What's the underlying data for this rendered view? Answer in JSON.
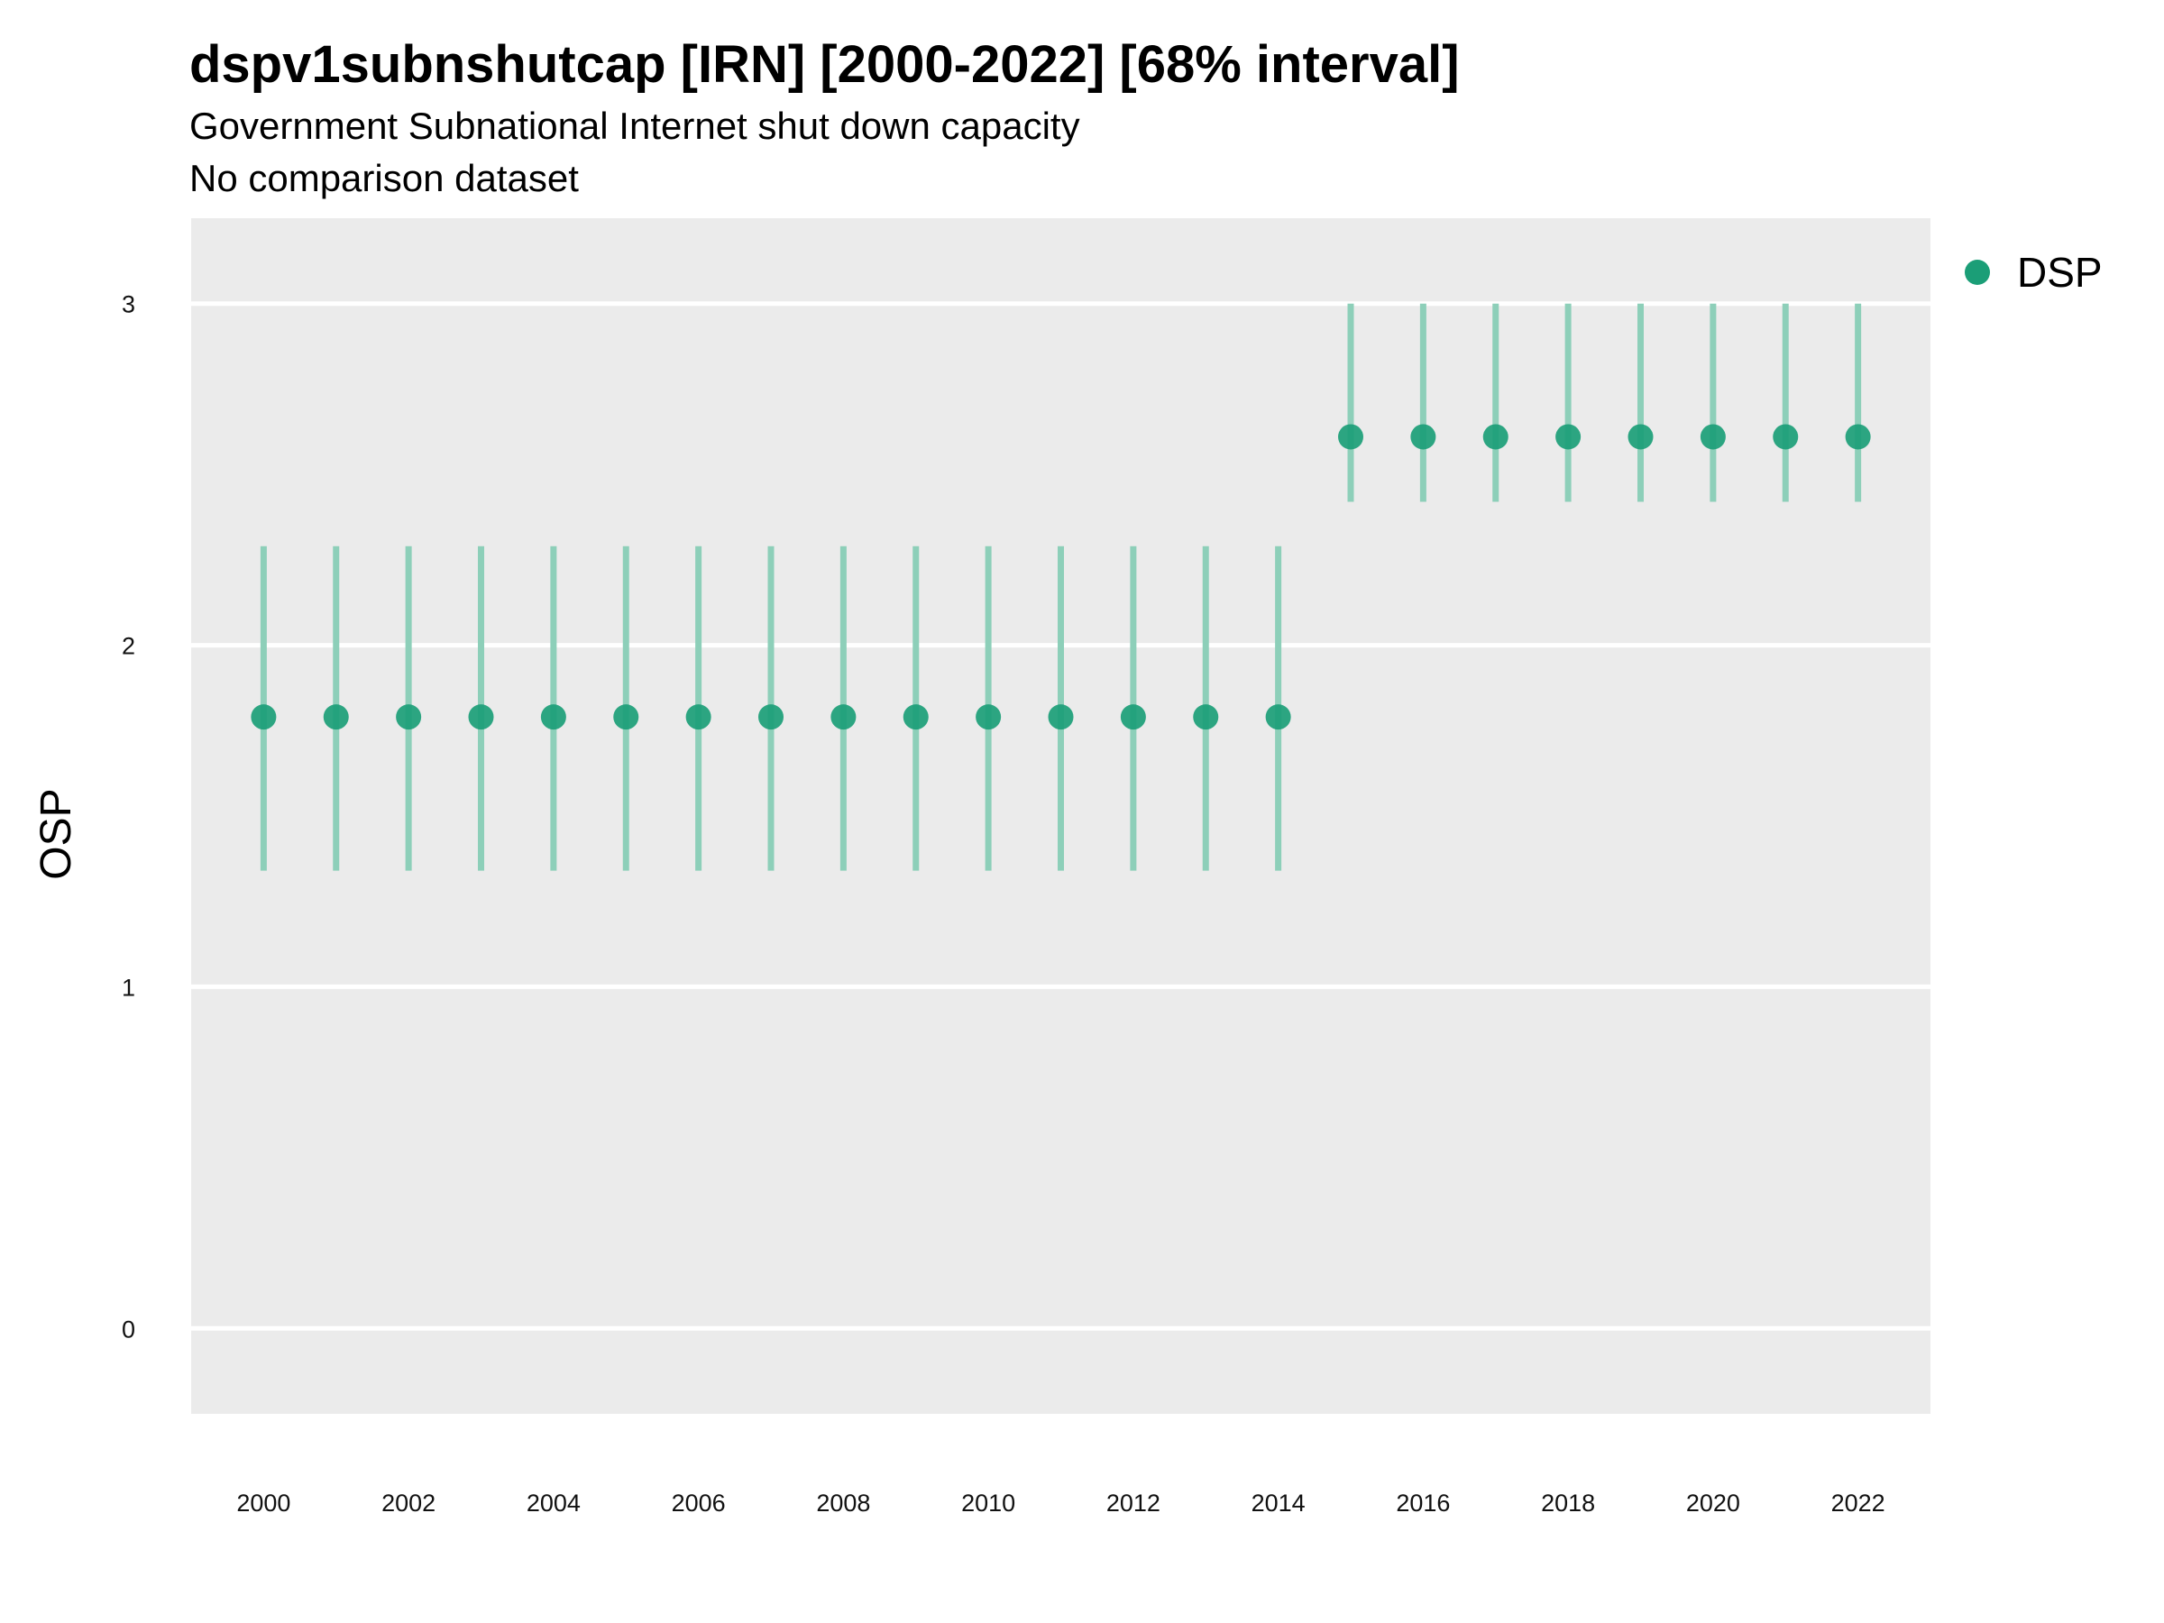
{
  "chart_data": {
    "type": "scatter",
    "title": "dspv1subnshutcap [IRN] [2000-2022] [68% interval]",
    "subtitle": "Government Subnational Internet shut down capacity",
    "caption": "No comparison dataset",
    "xlabel": "",
    "ylabel": "OSP",
    "x": [
      2000,
      2001,
      2002,
      2003,
      2004,
      2005,
      2006,
      2007,
      2008,
      2009,
      2010,
      2011,
      2012,
      2013,
      2014,
      2015,
      2016,
      2017,
      2018,
      2019,
      2020,
      2021,
      2022
    ],
    "series": [
      {
        "name": "DSP",
        "color": "#1b9e77",
        "interval_color": "#8dcfb9",
        "values": [
          1.79,
          1.79,
          1.79,
          1.79,
          1.79,
          1.79,
          1.79,
          1.79,
          1.79,
          1.79,
          1.79,
          1.79,
          1.79,
          1.79,
          1.79,
          2.61,
          2.61,
          2.61,
          2.61,
          2.61,
          2.61,
          2.61,
          2.61
        ],
        "lower": [
          1.34,
          1.34,
          1.34,
          1.34,
          1.34,
          1.34,
          1.34,
          1.34,
          1.34,
          1.34,
          1.34,
          1.34,
          1.34,
          1.34,
          1.34,
          2.42,
          2.42,
          2.42,
          2.42,
          2.42,
          2.42,
          2.42,
          2.42
        ],
        "upper": [
          2.29,
          2.29,
          2.29,
          2.29,
          2.29,
          2.29,
          2.29,
          2.29,
          2.29,
          2.29,
          2.29,
          2.29,
          2.29,
          2.29,
          2.29,
          3.0,
          3.0,
          3.0,
          3.0,
          3.0,
          3.0,
          3.0,
          3.0
        ]
      }
    ],
    "xticks": [
      2000,
      2002,
      2004,
      2006,
      2008,
      2010,
      2012,
      2014,
      2016,
      2018,
      2020,
      2022
    ],
    "xlim": [
      1999,
      2023
    ],
    "yticks": [
      0,
      1,
      2,
      3
    ],
    "ylim": [
      -0.25,
      3.25
    ],
    "grid": "horizontal major lines",
    "legend_position": "right",
    "panel_color": "#ebebeb"
  }
}
